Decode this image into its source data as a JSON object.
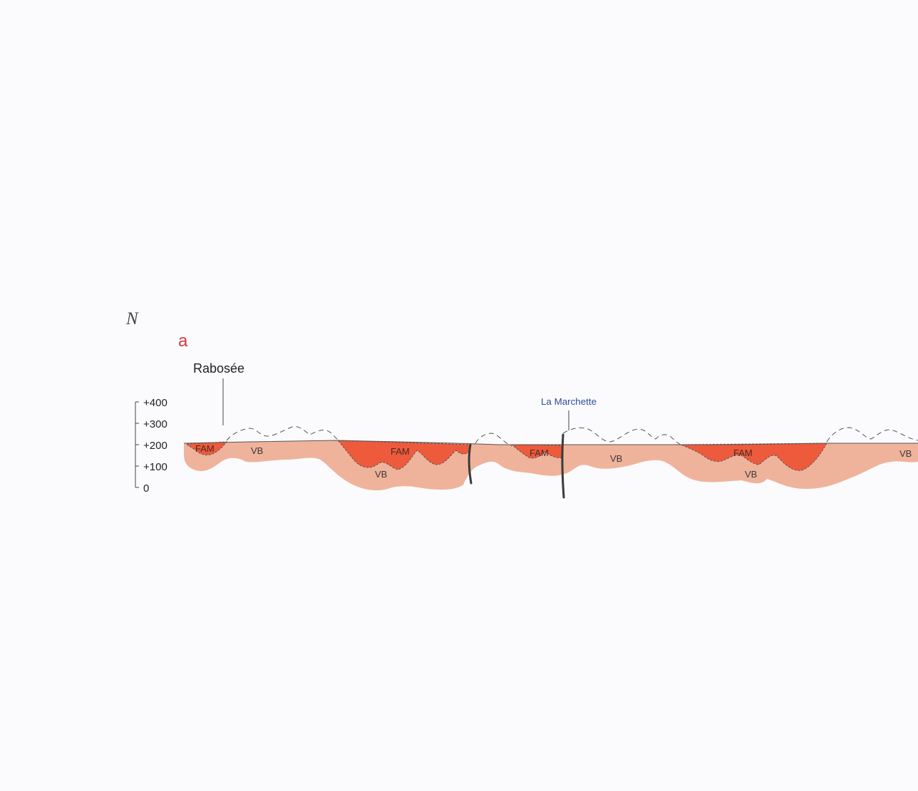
{
  "orientation": "N",
  "panel_label": "a",
  "places": {
    "west": "Rabosée",
    "center": "La Marchette"
  },
  "scale": {
    "ticks": [
      "+400",
      "+300",
      "+200",
      "+100",
      "0"
    ]
  },
  "units": {
    "fam": "FAM",
    "vb": "VB"
  },
  "colors": {
    "background": "#fbfbfd",
    "fam_fill": "#ee5a3c",
    "vb_fill": "#efb39b",
    "outline": "#555555",
    "panel_label": "#d8383a",
    "place_center": "#2b4d9c",
    "fault": "#3a3a3a"
  }
}
